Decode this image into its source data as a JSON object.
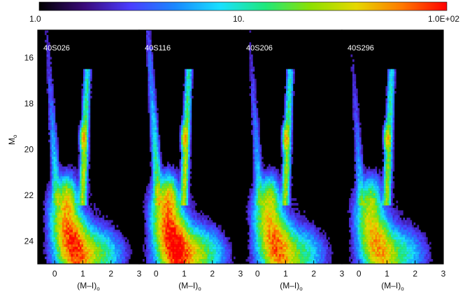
{
  "colorbar": {
    "min_label": "1.0",
    "mid_label": "10.",
    "max_label": "1.0E+02",
    "stops": [
      "#000000",
      "#3a0a7a",
      "#4a3cff",
      "#1a88ff",
      "#19e0ff",
      "#1fe87a",
      "#8ee000",
      "#e6d800",
      "#ff7a00",
      "#ff0000"
    ]
  },
  "chart_data": {
    "type": "heatmap",
    "panels": [
      {
        "name": "40S026",
        "strength": 1.0,
        "wing": 0.6
      },
      {
        "name": "40S116",
        "strength": 1.25,
        "wing": 1.0
      },
      {
        "name": "40S206",
        "strength": 0.8,
        "wing": 0.5
      },
      {
        "name": "40S296",
        "strength": 0.65,
        "wing": 0.4
      }
    ],
    "xlabel": "(M–I)",
    "xlabel_sub": "o",
    "ylabel": "M",
    "ylabel_sub": "o",
    "xlim": [
      -0.6,
      3.0
    ],
    "ylim": [
      25.0,
      14.8
    ],
    "xticks": [
      0,
      1,
      2,
      3
    ],
    "yticks": [
      16,
      18,
      20,
      22,
      24
    ],
    "color_scale": "log",
    "color_range": [
      1.0,
      100.0
    ]
  }
}
